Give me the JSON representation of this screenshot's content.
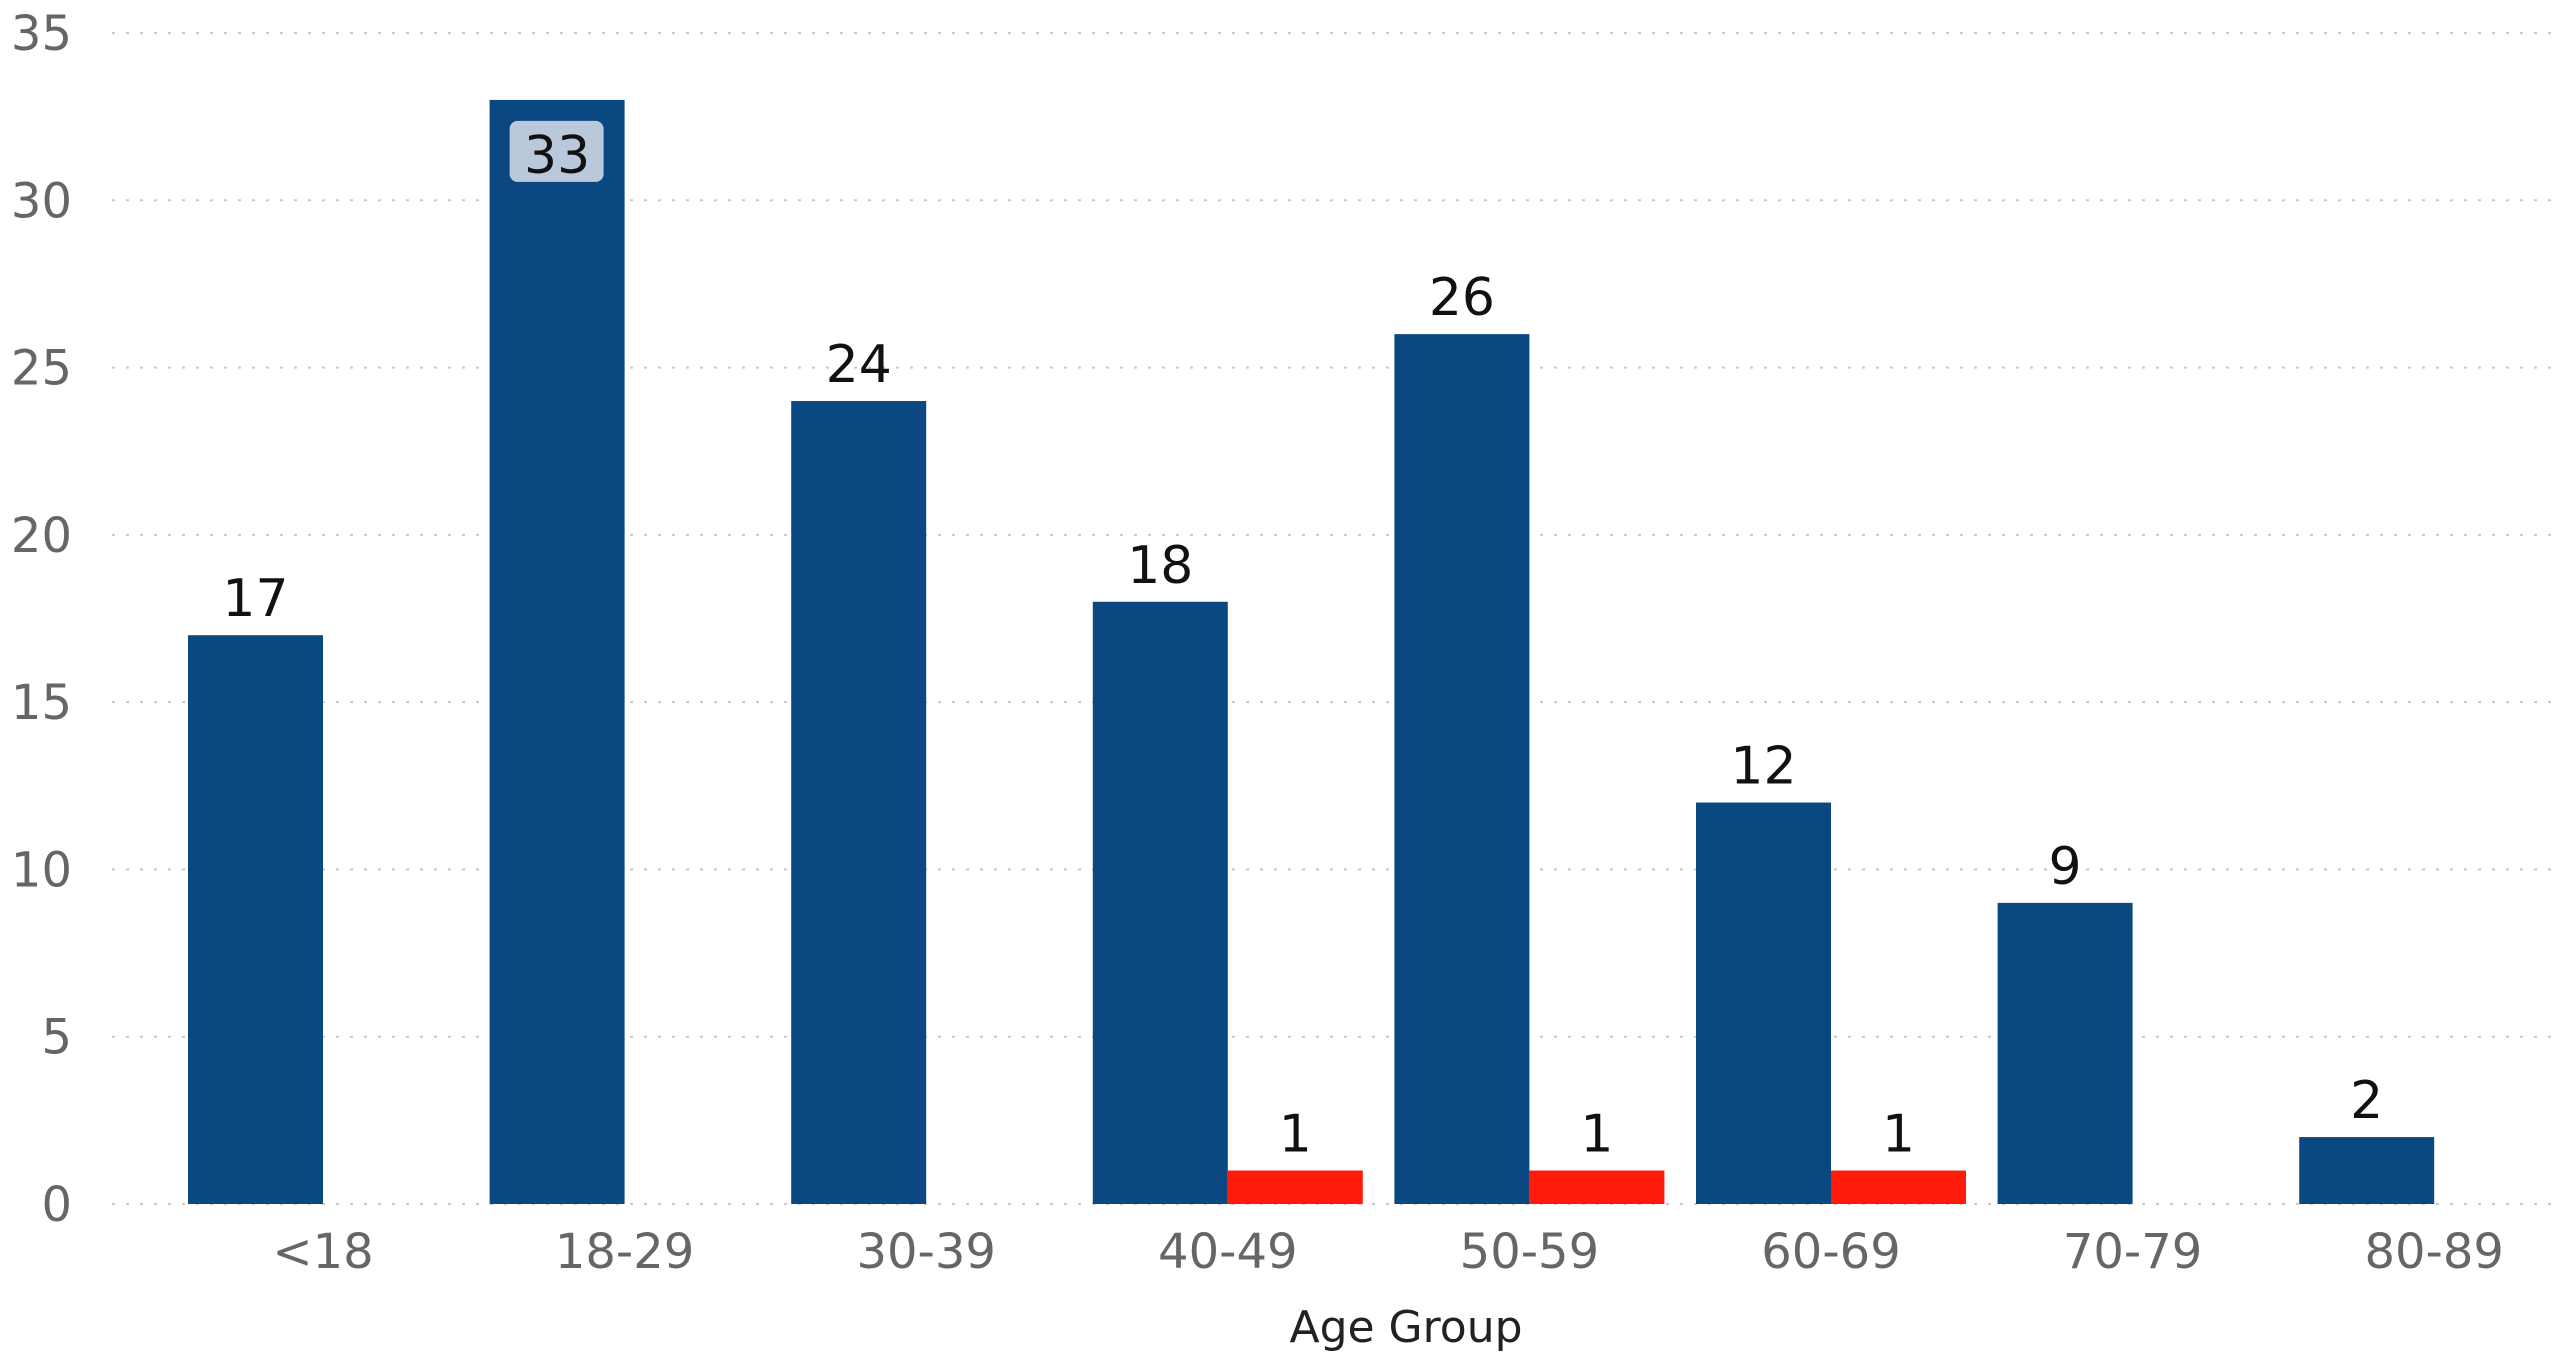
{
  "chart_data": {
    "type": "bar",
    "title": "",
    "xlabel": "Age Group",
    "ylabel": "",
    "ylim": [
      0,
      35
    ],
    "yticks": [
      0,
      5,
      10,
      15,
      20,
      25,
      30,
      35
    ],
    "grid": true,
    "categories": [
      "<18",
      "18-29",
      "30-39",
      "40-49",
      "50-59",
      "60-69",
      "70-79",
      "80-89"
    ],
    "series": [
      {
        "values": [
          17,
          33,
          24,
          18,
          26,
          12,
          9,
          2
        ],
        "color": "#0B4780"
      },
      {
        "values": [
          null,
          null,
          null,
          1,
          1,
          1,
          null,
          null
        ],
        "color": "#FF1A0A"
      }
    ],
    "highlight": {
      "category": "18-29",
      "label_background": "#B9C8DB"
    },
    "colors": {
      "gridline": "#C9C9C9",
      "tick_text": "#666666",
      "label_text": "#111111"
    }
  }
}
